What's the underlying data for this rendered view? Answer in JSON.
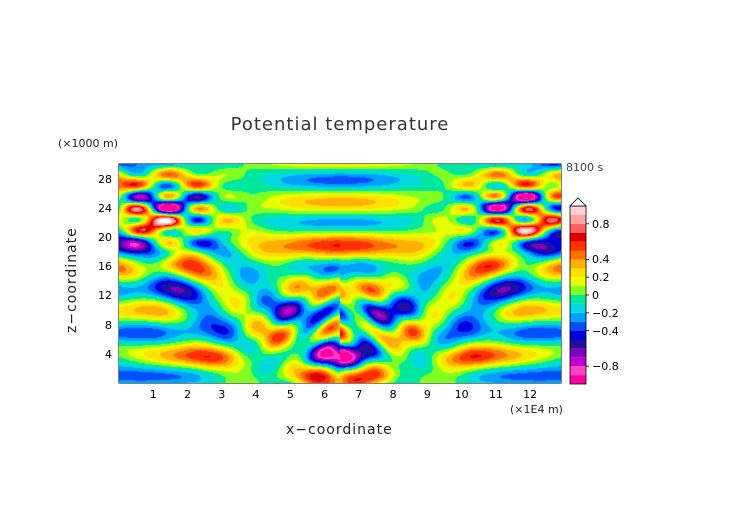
{
  "chart_data": {
    "type": "heatmap",
    "title": "Potential temperature",
    "xlabel": "x−coordinate",
    "ylabel": "z−coordinate",
    "x_unit": "(×1E4 m)",
    "z_unit": "(×1000 m)",
    "annotation": "8100 s",
    "xlim": [
      0,
      12.9
    ],
    "ylim": [
      0,
      30
    ],
    "x_ticks": [
      1,
      2,
      3,
      4,
      5,
      6,
      7,
      8,
      9,
      10,
      11,
      12
    ],
    "y_ticks": [
      4,
      8,
      12,
      16,
      20,
      24,
      28
    ],
    "colorbar": {
      "ticks": [
        {
          "value": 0.8,
          "label": "0.8"
        },
        {
          "value": 0.4,
          "label": "0.4"
        },
        {
          "value": 0.2,
          "label": "0.2"
        },
        {
          "value": 0,
          "label": "0"
        },
        {
          "value": -0.2,
          "label": "−0.2"
        },
        {
          "value": -0.4,
          "label": "−0.4"
        },
        {
          "value": -0.8,
          "label": "−0.8"
        }
      ],
      "levels": [
        -1.0,
        -0.9,
        -0.8,
        -0.7,
        -0.6,
        -0.5,
        -0.4,
        -0.3,
        -0.2,
        -0.1,
        0.0,
        0.1,
        0.2,
        0.3,
        0.4,
        0.5,
        0.6,
        0.7,
        0.8,
        0.9,
        1.0
      ],
      "colors": [
        "#ff00a0",
        "#ff40c0",
        "#c000d0",
        "#8000c0",
        "#2010a0",
        "#0000e0",
        "#0050ff",
        "#00a0ff",
        "#00d8e0",
        "#00e8a0",
        "#80ff20",
        "#e8ff00",
        "#ffe000",
        "#ffb000",
        "#ff7000",
        "#ff3000",
        "#e00000",
        "#ff6060",
        "#ffa0a0",
        "#ffd0d0"
      ],
      "extend": "max"
    }
  }
}
